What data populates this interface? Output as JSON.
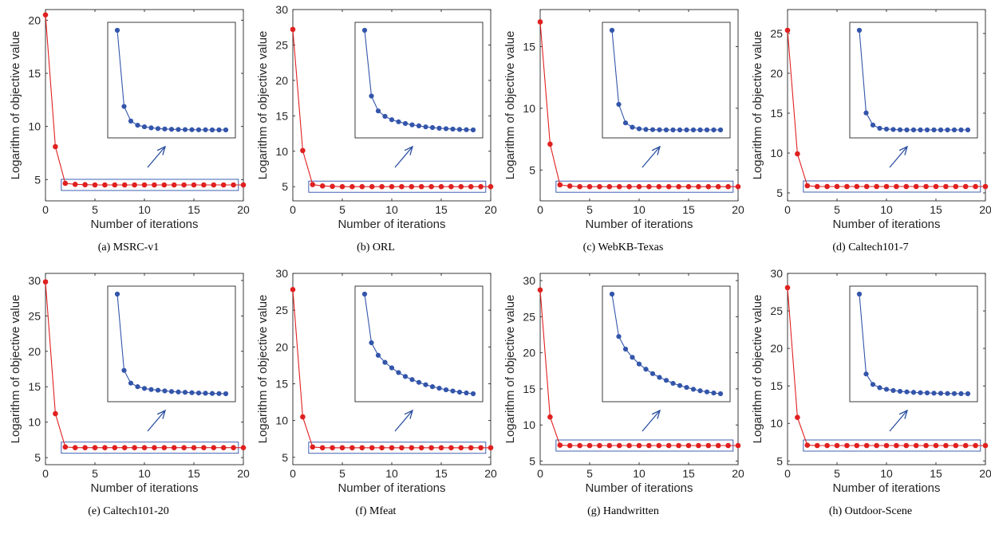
{
  "figure": {
    "xlabel": "Number of iterations",
    "ylabel": "Logarithm of objective value",
    "series_color": "#e02020",
    "inset_color": "#3355aa",
    "arrow_color": "#2a4ea0",
    "box_color": "#2b4fa8"
  },
  "chart_data": [
    {
      "type": "line",
      "caption": "(a)  MSRC-v1",
      "x": [
        0,
        1,
        2,
        3,
        4,
        5,
        6,
        7,
        8,
        9,
        10,
        11,
        12,
        13,
        14,
        15,
        16,
        17,
        18,
        19,
        20
      ],
      "y": [
        20.5,
        8.1,
        4.65,
        4.55,
        4.52,
        4.5,
        4.5,
        4.5,
        4.5,
        4.5,
        4.5,
        4.5,
        4.5,
        4.5,
        4.5,
        4.5,
        4.5,
        4.5,
        4.5,
        4.5,
        4.5
      ],
      "xlim": [
        0,
        20
      ],
      "ylim": [
        3,
        21
      ],
      "xticks": [
        0,
        5,
        10,
        15,
        20
      ],
      "yticks": [
        5,
        10,
        15,
        20
      ],
      "inset_y": [
        20.3,
        13.0,
        11.6,
        11.2,
        11.05,
        10.95,
        10.88,
        10.84,
        10.81,
        10.79,
        10.78,
        10.77,
        10.76,
        10.76,
        10.75,
        10.75,
        10.75
      ]
    },
    {
      "type": "line",
      "caption": "(b)  ORL",
      "x": [
        0,
        1,
        2,
        3,
        4,
        5,
        6,
        7,
        8,
        9,
        10,
        11,
        12,
        13,
        14,
        15,
        16,
        17,
        18,
        19,
        20
      ],
      "y": [
        27.2,
        10.1,
        5.3,
        5.1,
        5.05,
        5.0,
        5.0,
        5.0,
        5.0,
        5.0,
        5.0,
        5.0,
        5.0,
        5.0,
        5.0,
        5.0,
        5.0,
        5.0,
        5.0,
        5.0,
        5.0
      ],
      "xlim": [
        0,
        20
      ],
      "ylim": [
        3,
        30
      ],
      "xticks": [
        0,
        5,
        10,
        15,
        20
      ],
      "yticks": [
        5,
        10,
        15,
        20,
        25,
        30
      ],
      "inset_y": [
        27.2,
        17.5,
        15.3,
        14.5,
        14.0,
        13.7,
        13.45,
        13.25,
        13.1,
        12.95,
        12.85,
        12.75,
        12.68,
        12.62,
        12.57,
        12.53,
        12.5
      ]
    },
    {
      "type": "line",
      "caption": "(c)  WebKB-Texas",
      "x": [
        0,
        1,
        2,
        3,
        4,
        5,
        6,
        7,
        8,
        9,
        10,
        11,
        12,
        13,
        14,
        15,
        16,
        17,
        18,
        19,
        20
      ],
      "y": [
        17.0,
        7.1,
        3.8,
        3.7,
        3.65,
        3.65,
        3.65,
        3.65,
        3.65,
        3.65,
        3.65,
        3.65,
        3.65,
        3.65,
        3.65,
        3.65,
        3.65,
        3.65,
        3.65,
        3.65,
        3.65
      ],
      "xlim": [
        0,
        20
      ],
      "ylim": [
        2.5,
        18
      ],
      "xticks": [
        0,
        5,
        10,
        15,
        20
      ],
      "yticks": [
        5,
        10,
        15
      ],
      "inset_y": [
        16.6,
        10.6,
        9.1,
        8.75,
        8.62,
        8.57,
        8.55,
        8.54,
        8.53,
        8.53,
        8.53,
        8.53,
        8.53,
        8.53,
        8.53,
        8.53,
        8.53
      ]
    },
    {
      "type": "line",
      "caption": "(d)  Caltech101-7",
      "x": [
        0,
        1,
        2,
        3,
        4,
        5,
        6,
        7,
        8,
        9,
        10,
        11,
        12,
        13,
        14,
        15,
        16,
        17,
        18,
        19,
        20
      ],
      "y": [
        25.4,
        9.9,
        5.9,
        5.8,
        5.8,
        5.8,
        5.8,
        5.8,
        5.8,
        5.8,
        5.8,
        5.8,
        5.8,
        5.8,
        5.8,
        5.8,
        5.8,
        5.8,
        5.8,
        5.8,
        5.8
      ],
      "xlim": [
        0,
        20
      ],
      "ylim": [
        4,
        28
      ],
      "xticks": [
        0,
        5,
        10,
        15,
        20
      ],
      "yticks": [
        5,
        10,
        15,
        20,
        25
      ],
      "inset_y": [
        25.4,
        15.2,
        13.7,
        13.3,
        13.2,
        13.15,
        13.12,
        13.1,
        13.1,
        13.1,
        13.1,
        13.1,
        13.1,
        13.1,
        13.1,
        13.1,
        13.1
      ]
    },
    {
      "type": "line",
      "caption": "(e)  Caltech101-20",
      "x": [
        0,
        1,
        2,
        3,
        4,
        5,
        6,
        7,
        8,
        9,
        10,
        11,
        12,
        13,
        14,
        15,
        16,
        17,
        18,
        19,
        20
      ],
      "y": [
        29.8,
        11.2,
        6.5,
        6.4,
        6.4,
        6.4,
        6.4,
        6.4,
        6.4,
        6.4,
        6.4,
        6.4,
        6.4,
        6.4,
        6.4,
        6.4,
        6.4,
        6.4,
        6.4,
        6.4,
        6.4
      ],
      "xlim": [
        0,
        20
      ],
      "ylim": [
        4,
        31
      ],
      "xticks": [
        0,
        5,
        10,
        15,
        20
      ],
      "yticks": [
        5,
        10,
        15,
        20,
        25,
        30
      ],
      "inset_y": [
        28.8,
        18.0,
        16.2,
        15.7,
        15.45,
        15.3,
        15.2,
        15.1,
        15.02,
        14.95,
        14.9,
        14.85,
        14.8,
        14.77,
        14.74,
        14.72,
        14.7
      ]
    },
    {
      "type": "line",
      "caption": "(f)  Mfeat",
      "x": [
        0,
        1,
        2,
        3,
        4,
        5,
        6,
        7,
        8,
        9,
        10,
        11,
        12,
        13,
        14,
        15,
        16,
        17,
        18,
        19,
        20
      ],
      "y": [
        27.8,
        10.5,
        6.4,
        6.3,
        6.3,
        6.3,
        6.3,
        6.3,
        6.3,
        6.3,
        6.3,
        6.3,
        6.3,
        6.3,
        6.3,
        6.3,
        6.3,
        6.3,
        6.3,
        6.3,
        6.3
      ],
      "xlim": [
        0,
        20
      ],
      "ylim": [
        4,
        30
      ],
      "xticks": [
        0,
        5,
        10,
        15,
        20
      ],
      "yticks": [
        5,
        10,
        15,
        20,
        25,
        30
      ],
      "inset_y": [
        26.8,
        20.6,
        19.0,
        18.1,
        17.4,
        16.8,
        16.3,
        15.9,
        15.55,
        15.25,
        15.0,
        14.8,
        14.6,
        14.45,
        14.3,
        14.2,
        14.1
      ]
    },
    {
      "type": "line",
      "caption": "(g)  Handwritten",
      "x": [
        0,
        1,
        2,
        3,
        4,
        5,
        6,
        7,
        8,
        9,
        10,
        11,
        12,
        13,
        14,
        15,
        16,
        17,
        18,
        19,
        20
      ],
      "y": [
        28.7,
        11.1,
        7.2,
        7.15,
        7.15,
        7.15,
        7.15,
        7.15,
        7.15,
        7.15,
        7.15,
        7.15,
        7.15,
        7.15,
        7.15,
        7.15,
        7.15,
        7.15,
        7.15,
        7.15,
        7.15
      ],
      "xlim": [
        0,
        20
      ],
      "ylim": [
        4.5,
        31
      ],
      "xticks": [
        0,
        5,
        10,
        15,
        20
      ],
      "yticks": [
        5,
        10,
        15,
        20,
        25,
        30
      ],
      "inset_y": [
        28.0,
        22.3,
        20.6,
        19.5,
        18.6,
        17.9,
        17.3,
        16.8,
        16.4,
        16.0,
        15.7,
        15.45,
        15.2,
        15.0,
        14.85,
        14.7,
        14.6
      ]
    },
    {
      "type": "line",
      "caption": "(h)  Outdoor-Scene",
      "x": [
        0,
        1,
        2,
        3,
        4,
        5,
        6,
        7,
        8,
        9,
        10,
        11,
        12,
        13,
        14,
        15,
        16,
        17,
        18,
        19,
        20
      ],
      "y": [
        28.1,
        10.8,
        7.1,
        7.05,
        7.05,
        7.05,
        7.05,
        7.05,
        7.05,
        7.05,
        7.05,
        7.05,
        7.05,
        7.05,
        7.05,
        7.05,
        7.05,
        7.05,
        7.05,
        7.05,
        7.05
      ],
      "xlim": [
        0,
        20
      ],
      "ylim": [
        4.5,
        30
      ],
      "xticks": [
        0,
        5,
        10,
        15,
        20
      ],
      "yticks": [
        5,
        10,
        15,
        20,
        25,
        30
      ],
      "inset_y": [
        27.0,
        17.1,
        15.8,
        15.4,
        15.2,
        15.05,
        14.95,
        14.88,
        14.82,
        14.78,
        14.75,
        14.72,
        14.7,
        14.68,
        14.67,
        14.66,
        14.65
      ]
    }
  ]
}
